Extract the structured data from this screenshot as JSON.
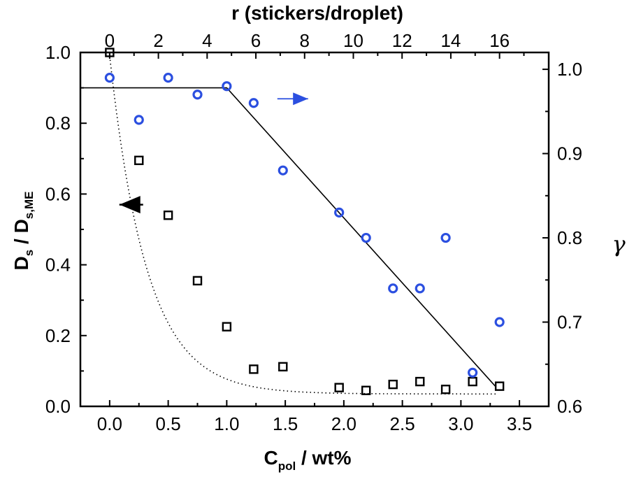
{
  "chart_data": {
    "type": "scatter",
    "top_axis": {
      "label": "r (stickers/droplet)",
      "ticks": [
        "0",
        "2",
        "4",
        "6",
        "8",
        "10",
        "12",
        "14",
        "16"
      ]
    },
    "bottom_axis": {
      "label_main": "C",
      "label_sub": "pol",
      "label_rest": " / wt%",
      "xlim": [
        -0.25,
        3.75
      ],
      "ticks": [
        "0.0",
        "0.5",
        "1.0",
        "1.5",
        "2.0",
        "2.5",
        "3.0",
        "3.5"
      ],
      "tick_values": [
        0,
        0.5,
        1.0,
        1.5,
        2.0,
        2.5,
        3.0,
        3.5
      ]
    },
    "left_axis": {
      "label_main1": "D",
      "label_sub1": "s",
      "label_mid": " / D",
      "label_sub2": "s,ME",
      "ylim": [
        0,
        1.0
      ],
      "ticks": [
        "0.0",
        "0.2",
        "0.4",
        "0.6",
        "0.8",
        "1.0"
      ],
      "tick_values": [
        0,
        0.2,
        0.4,
        0.6,
        0.8,
        1.0
      ]
    },
    "right_axis": {
      "label": "γ",
      "ylim": [
        0.6,
        1.02
      ],
      "ticks": [
        "0.6",
        "0.7",
        "0.8",
        "0.9",
        "1.0"
      ],
      "tick_values": [
        0.6,
        0.7,
        0.8,
        0.9,
        1.0
      ]
    },
    "series": [
      {
        "axis": "left",
        "marker": "square",
        "color": "#000000",
        "points": [
          [
            0.0,
            1.0
          ],
          [
            0.25,
            0.695
          ],
          [
            0.5,
            0.54
          ],
          [
            0.75,
            0.355
          ],
          [
            1.0,
            0.225
          ],
          [
            1.23,
            0.105
          ],
          [
            1.48,
            0.112
          ],
          [
            1.96,
            0.053
          ],
          [
            2.19,
            0.045
          ],
          [
            2.42,
            0.062
          ],
          [
            2.65,
            0.07
          ],
          [
            2.87,
            0.048
          ],
          [
            3.1,
            0.07
          ],
          [
            3.33,
            0.057
          ]
        ]
      },
      {
        "axis": "right",
        "marker": "circle",
        "color": "#2b4fe0",
        "points": [
          [
            0.0,
            0.99
          ],
          [
            0.25,
            0.94
          ],
          [
            0.5,
            0.99
          ],
          [
            0.75,
            0.97
          ],
          [
            1.0,
            0.98
          ],
          [
            1.23,
            0.96
          ],
          [
            1.48,
            0.88
          ],
          [
            1.96,
            0.83
          ],
          [
            2.19,
            0.8
          ],
          [
            2.42,
            0.74
          ],
          [
            2.65,
            0.74
          ],
          [
            2.87,
            0.8
          ],
          [
            3.1,
            0.64
          ],
          [
            3.33,
            0.7
          ]
        ]
      }
    ],
    "fit_line": {
      "axis": "right",
      "style": "solid",
      "color": "#000000",
      "points": [
        [
          -0.25,
          0.978
        ],
        [
          1.0,
          0.978
        ],
        [
          3.3,
          0.623
        ]
      ]
    },
    "fit_curve": {
      "axis": "left",
      "style": "dotted",
      "color": "#000000",
      "function": "exp_decay",
      "amplitude": 0.99,
      "tau": 0.32,
      "offset": 0.035,
      "x_range": [
        0.0,
        3.3
      ]
    },
    "arrows": [
      {
        "axis": "left",
        "direction": "left",
        "color": "#000000",
        "x": 0.25,
        "y": 0.57
      },
      {
        "axis": "right",
        "direction": "right",
        "color": "#2b4fe0",
        "x": 1.48,
        "y": 0.965
      }
    ],
    "grid": false,
    "legend": "none"
  }
}
